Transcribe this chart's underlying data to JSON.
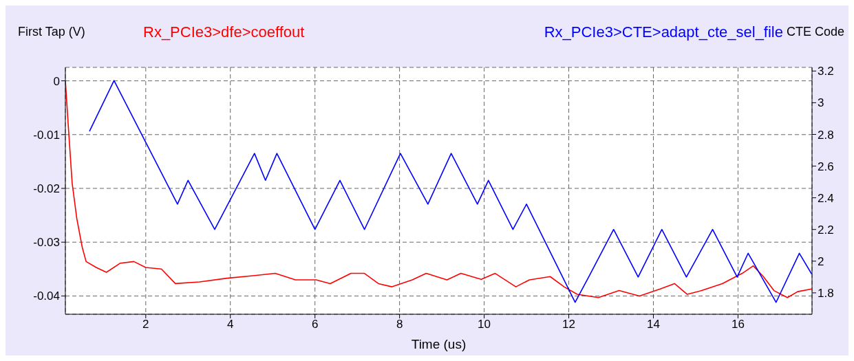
{
  "chart_data": {
    "type": "line",
    "xlabel": "Time (us)",
    "ylabel": "First Tap (V)",
    "y2label": "CTE Code",
    "legend": "top",
    "grid": true,
    "marker": "none",
    "line_style": "solid",
    "xlim": [
      0.1,
      17.75
    ],
    "xticks": [
      2,
      4,
      6,
      8,
      10,
      12,
      14,
      16
    ],
    "ylim": [
      -0.0434,
      0.0025
    ],
    "yticks": [
      0,
      -0.01,
      -0.02,
      -0.03,
      -0.04
    ],
    "y2lim": [
      1.665,
      3.223
    ],
    "y2ticks": [
      1.8,
      2,
      2.2,
      2.4,
      2.6,
      2.8,
      3,
      3.2
    ],
    "series": [
      {
        "name": "Rx_PCIe3>dfe>coeffout",
        "color": "#ff0000",
        "x": [
          0.1,
          0.18,
          0.26,
          0.37,
          0.5,
          0.59,
          0.83,
          1.07,
          1.4,
          1.72,
          2,
          2.37,
          2.7,
          3.27,
          3.92,
          4.57,
          5.06,
          5.54,
          6.03,
          6.36,
          6.85,
          7.17,
          7.5,
          7.82,
          8.3,
          8.63,
          9.12,
          9.45,
          9.93,
          10.26,
          10.75,
          11.07,
          11.56,
          11.89,
          12.2,
          12.7,
          13.19,
          13.67,
          14.16,
          14.5,
          14.8,
          15.14,
          15.63,
          15.95,
          16.1,
          16.36,
          16.6,
          16.85,
          17.17,
          17.41,
          17.74
        ],
        "values": [
          0,
          -0.0097,
          -0.019,
          -0.0256,
          -0.031,
          -0.0336,
          -0.0347,
          -0.0356,
          -0.0339,
          -0.0336,
          -0.0347,
          -0.035,
          -0.0377,
          -0.0374,
          -0.0367,
          -0.0362,
          -0.0358,
          -0.037,
          -0.037,
          -0.0377,
          -0.0358,
          -0.0358,
          -0.0377,
          -0.0383,
          -0.037,
          -0.0358,
          -0.037,
          -0.0358,
          -0.0369,
          -0.0358,
          -0.0383,
          -0.037,
          -0.0364,
          -0.0383,
          -0.0397,
          -0.0403,
          -0.039,
          -0.04,
          -0.0387,
          -0.0377,
          -0.0397,
          -0.039,
          -0.0377,
          -0.0364,
          -0.0358,
          -0.0344,
          -0.0364,
          -0.039,
          -0.0403,
          -0.0392,
          -0.0387
        ]
      },
      {
        "name": "Rx_PCIe3>CTE>adapt_cte_sel_file",
        "color": "#0000ff",
        "axis": "y2",
        "x": [
          0.67,
          1.25,
          2.75,
          3.0,
          3.63,
          4.57,
          4.83,
          5.1,
          6.0,
          6.59,
          7.17,
          8.02,
          8.67,
          9.22,
          9.84,
          10.1,
          10.68,
          11.0,
          12.15,
          12.47,
          13.06,
          13.64,
          14.2,
          14.78,
          15.4,
          15.98,
          16.24,
          16.9,
          17.45,
          17.74
        ],
        "values": [
          2.82,
          3.14,
          2.36,
          2.51,
          2.2,
          2.68,
          2.51,
          2.68,
          2.2,
          2.51,
          2.2,
          2.68,
          2.36,
          2.68,
          2.36,
          2.51,
          2.2,
          2.36,
          1.74,
          1.9,
          2.2,
          1.9,
          2.2,
          1.9,
          2.2,
          1.9,
          2.05,
          1.74,
          2.05,
          1.92
        ]
      }
    ]
  }
}
